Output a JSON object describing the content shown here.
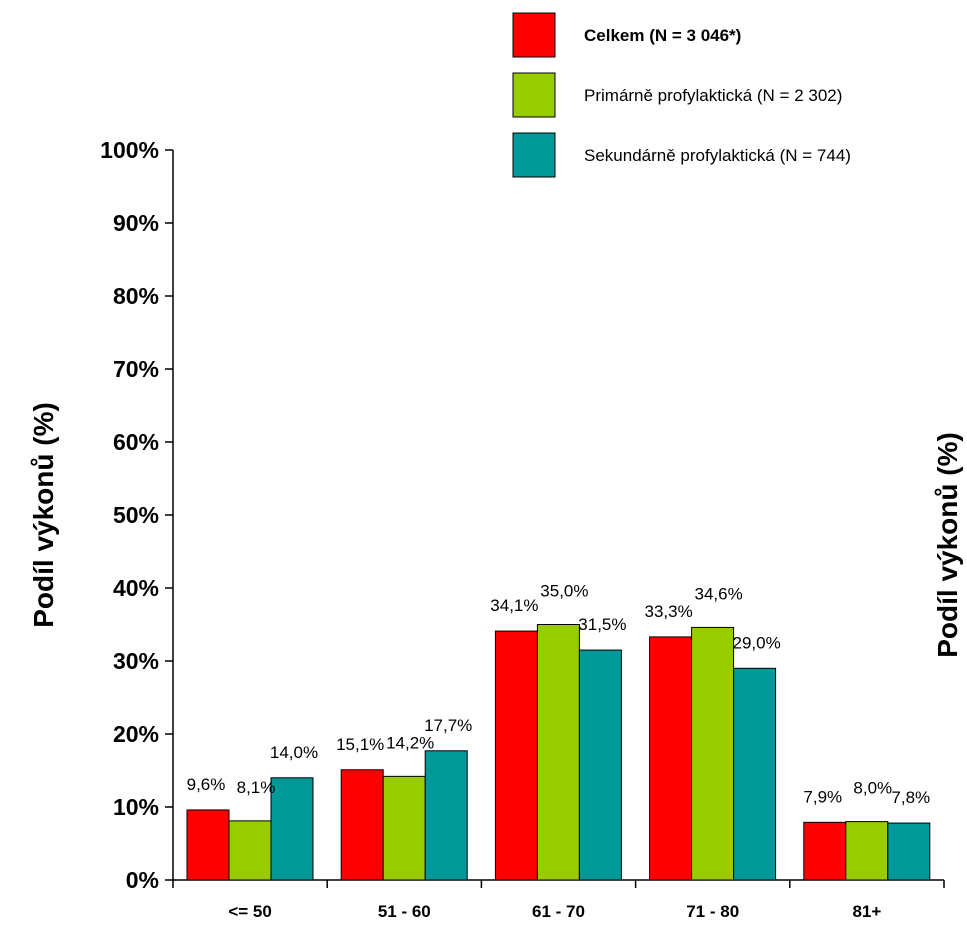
{
  "chart_data": {
    "type": "bar",
    "categories": [
      "<= 50",
      "51 - 60",
      "61 - 70",
      "71 - 80",
      "81+"
    ],
    "series": [
      {
        "name": "Celkem (N = 3 046*)",
        "color": "#ff0000",
        "values": [
          9.6,
          15.1,
          34.1,
          33.3,
          7.9
        ],
        "labels": [
          "9,6%",
          "15,1%",
          "34,1%",
          "33,3%",
          "7,9%"
        ]
      },
      {
        "name": "Primárně profylaktická (N = 2 302)",
        "color": "#99cc00",
        "values": [
          8.1,
          14.2,
          35.0,
          34.6,
          8.0
        ],
        "labels": [
          "8,1%",
          "14,2%",
          "35,0%",
          "34,6%",
          "8,0%"
        ]
      },
      {
        "name": "Sekundárně profylaktická (N = 744)",
        "color": "#009999",
        "values": [
          14.0,
          17.7,
          31.5,
          29.0,
          7.8
        ],
        "labels": [
          "14,0%",
          "17,7%",
          "31,5%",
          "29,0%",
          "7,8%"
        ]
      }
    ],
    "ylabel": "Podíl výkonů (%)",
    "ylabel_secondary": "Podíl výkonů (%)",
    "ylim": [
      0,
      100
    ],
    "yticks": [
      "0%",
      "10%",
      "20%",
      "30%",
      "40%",
      "50%",
      "60%",
      "70%",
      "80%",
      "90%",
      "100%"
    ],
    "legend_position": "top-right",
    "grid": false
  }
}
